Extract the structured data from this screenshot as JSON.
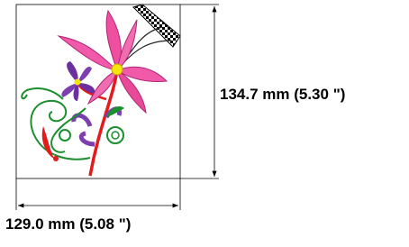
{
  "dimensions": {
    "height": "134.7 mm (5.30 \")",
    "width": "129.0 mm (5.08 \")"
  }
}
